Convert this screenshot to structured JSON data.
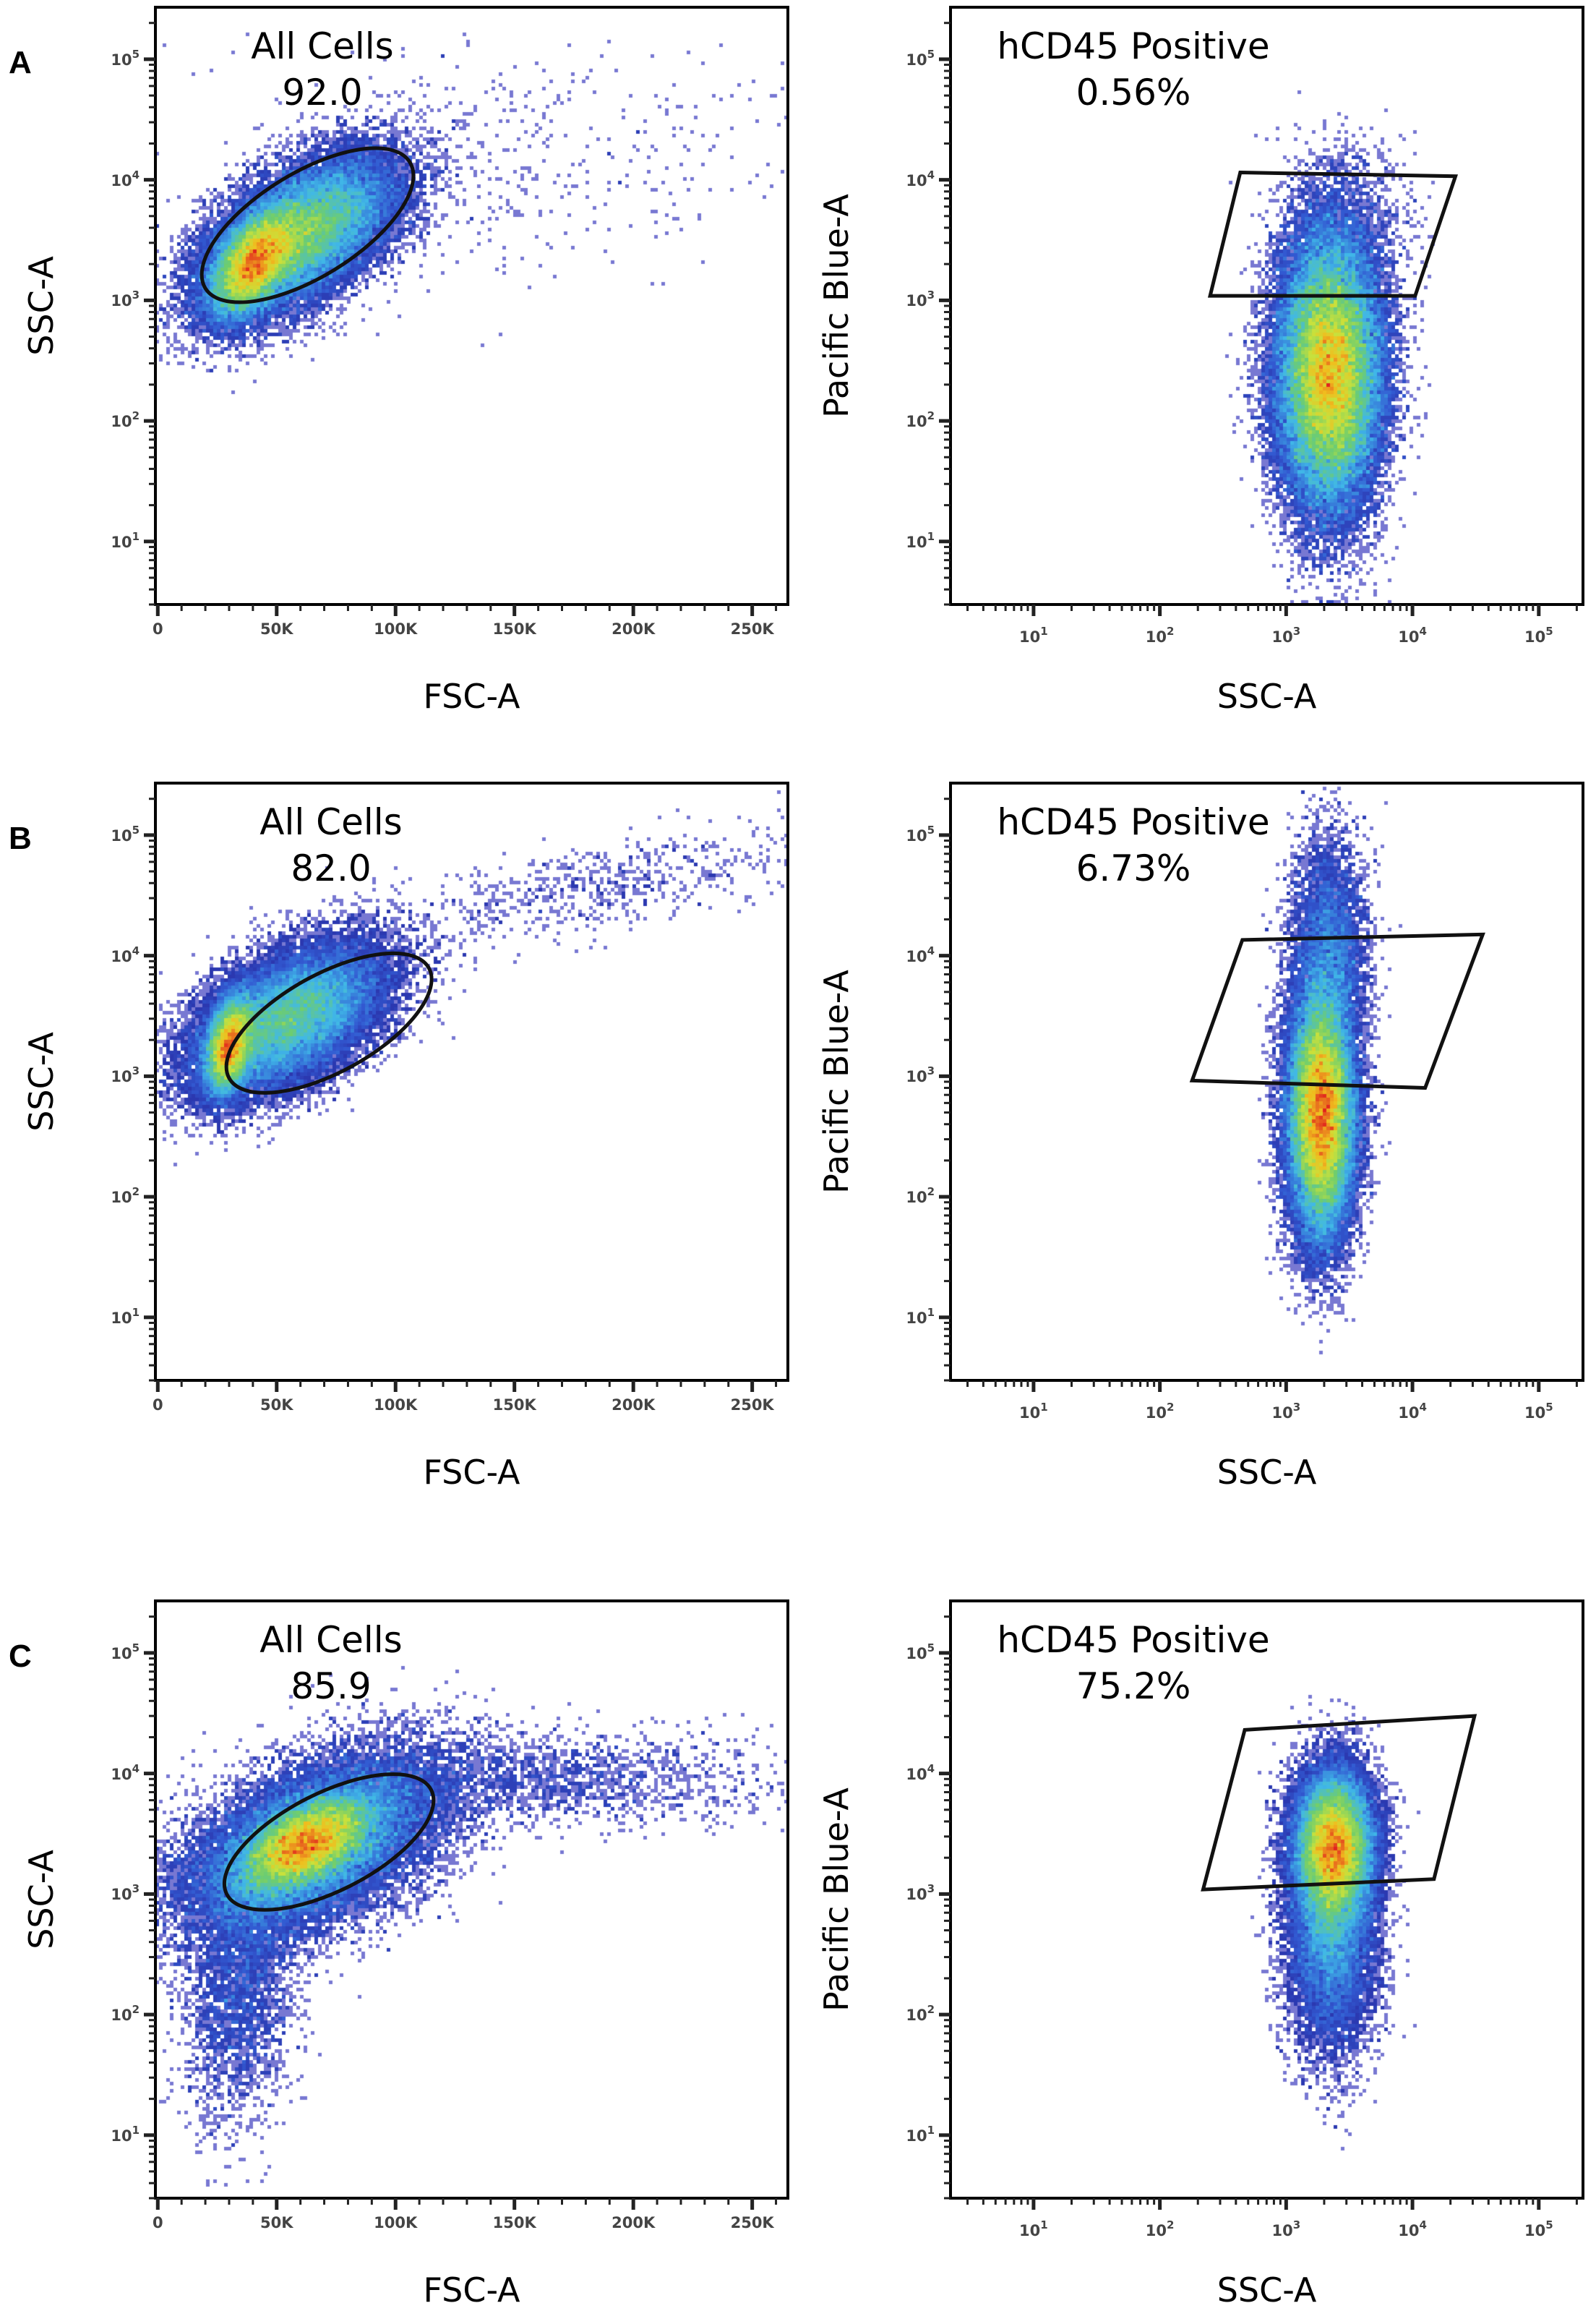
{
  "chart_data": [
    {
      "panel": "A",
      "type": "scatter",
      "subtype": "density-dot-plot",
      "xlabel": "FSC-A",
      "ylabel": "SSC-A",
      "x_scale": "linear",
      "y_scale": "log",
      "xlim": [
        -1000,
        265000
      ],
      "ylim": [
        3,
        270000
      ],
      "x_ticks": [
        "0",
        "50K",
        "100K",
        "150K",
        "200K",
        "250K"
      ],
      "y_ticks": [
        {
          "base": "10",
          "exp": "1"
        },
        {
          "base": "10",
          "exp": "2"
        },
        {
          "base": "10",
          "exp": "3"
        },
        {
          "base": "10",
          "exp": "4"
        },
        {
          "base": "10",
          "exp": "5"
        }
      ],
      "gate": {
        "name": "All Cells",
        "value": "92.0",
        "shape": "ellipse",
        "center": [
          63000,
          4200
        ],
        "major_end": [
          106000,
          14000
        ],
        "minor_end": [
          75000,
          1830
        ]
      },
      "clusters": [
        {
          "x_center": 40000,
          "x_spread": 9000,
          "y_center": 2000,
          "y_spread_decades": 0.22,
          "correlation": 0.5,
          "weight": 0.35
        },
        {
          "x_center": 60000,
          "x_spread": 20000,
          "y_center": 3500,
          "y_spread_decades": 0.32,
          "correlation": 0.55,
          "weight": 0.6
        },
        {
          "x_center": 150000,
          "x_spread": 60000,
          "y_center": 15000,
          "y_spread_decades": 0.5,
          "correlation": 0.2,
          "weight": 0.01
        }
      ]
    },
    {
      "panel": "A",
      "type": "scatter",
      "subtype": "density-dot-plot",
      "xlabel": "SSC-A",
      "ylabel": "Pacific Blue-A",
      "x_scale": "log",
      "y_scale": "log",
      "xlim": [
        2.2,
        224000
      ],
      "ylim": [
        3,
        270000
      ],
      "x_ticks": [
        {
          "base": "10",
          "exp": "1"
        },
        {
          "base": "10",
          "exp": "2"
        },
        {
          "base": "10",
          "exp": "3"
        },
        {
          "base": "10",
          "exp": "4"
        },
        {
          "base": "10",
          "exp": "5"
        }
      ],
      "y_ticks": [
        {
          "base": "10",
          "exp": "1"
        },
        {
          "base": "10",
          "exp": "2"
        },
        {
          "base": "10",
          "exp": "3"
        },
        {
          "base": "10",
          "exp": "4"
        },
        {
          "base": "10",
          "exp": "5"
        }
      ],
      "gate": {
        "name": "hCD45 Positive",
        "value": "0.56%",
        "shape": "polygon",
        "vertices": [
          [
            433,
            11500
          ],
          [
            21900,
            10700
          ],
          [
            10500,
            1090
          ],
          [
            250,
            1090
          ]
        ]
      },
      "clusters": [
        {
          "x_center": 2200,
          "x_spread_decades": 0.2,
          "y_center": 250,
          "y_spread_decades": 0.55,
          "correlation": 0.0,
          "weight": 0.97
        },
        {
          "x_center": 3000,
          "x_spread_decades": 0.25,
          "y_center": 3000,
          "y_spread_decades": 0.4,
          "correlation": 0.0,
          "weight": 0.03
        }
      ]
    },
    {
      "panel": "B",
      "type": "scatter",
      "subtype": "density-dot-plot",
      "xlabel": "FSC-A",
      "ylabel": "SSC-A",
      "x_scale": "linear",
      "y_scale": "log",
      "xlim": [
        -1000,
        265000
      ],
      "ylim": [
        3,
        270000
      ],
      "x_ticks": [
        "0",
        "50K",
        "100K",
        "150K",
        "200K",
        "250K"
      ],
      "y_ticks": [
        {
          "base": "10",
          "exp": "1"
        },
        {
          "base": "10",
          "exp": "2"
        },
        {
          "base": "10",
          "exp": "3"
        },
        {
          "base": "10",
          "exp": "4"
        },
        {
          "base": "10",
          "exp": "5"
        }
      ],
      "gate": {
        "name": "All Cells",
        "value": "82.0",
        "shape": "ellipse",
        "center": [
          72000,
          2760
        ],
        "major_end": [
          114000,
          7900
        ],
        "minor_end": [
          82000,
          1220
        ]
      },
      "clusters": [
        {
          "x_center": 30000,
          "x_spread": 5000,
          "y_center": 1800,
          "y_spread_decades": 0.2,
          "correlation": 0.3,
          "weight": 0.3
        },
        {
          "x_center": 55000,
          "x_spread": 20000,
          "y_center": 3000,
          "y_spread_decades": 0.3,
          "correlation": 0.5,
          "weight": 0.62
        },
        {
          "x_center": 180000,
          "x_spread": 50000,
          "y_center": 35000,
          "y_spread_decades": 0.25,
          "correlation": 0.7,
          "weight": 0.015
        }
      ]
    },
    {
      "panel": "B",
      "type": "scatter",
      "subtype": "density-dot-plot",
      "xlabel": "SSC-A",
      "ylabel": "Pacific Blue-A",
      "x_scale": "log",
      "y_scale": "log",
      "xlim": [
        2.2,
        224000
      ],
      "ylim": [
        3,
        270000
      ],
      "x_ticks": [
        {
          "base": "10",
          "exp": "1"
        },
        {
          "base": "10",
          "exp": "2"
        },
        {
          "base": "10",
          "exp": "3"
        },
        {
          "base": "10",
          "exp": "4"
        },
        {
          "base": "10",
          "exp": "5"
        }
      ],
      "y_ticks": [
        {
          "base": "10",
          "exp": "1"
        },
        {
          "base": "10",
          "exp": "2"
        },
        {
          "base": "10",
          "exp": "3"
        },
        {
          "base": "10",
          "exp": "4"
        },
        {
          "base": "10",
          "exp": "5"
        }
      ],
      "gate": {
        "name": "hCD45 Positive",
        "value": "6.73%",
        "shape": "polygon",
        "vertices": [
          [
            450,
            13500
          ],
          [
            36000,
            15000
          ],
          [
            12600,
            800
          ],
          [
            180,
            920
          ]
        ]
      },
      "clusters": [
        {
          "x_center": 1900,
          "x_spread_decades": 0.13,
          "y_center": 500,
          "y_spread_decades": 0.5,
          "correlation": 0.0,
          "weight": 0.9
        },
        {
          "x_center": 2200,
          "x_spread_decades": 0.15,
          "y_center": 12000,
          "y_spread_decades": 0.45,
          "correlation": 0.0,
          "weight": 0.1
        }
      ]
    },
    {
      "panel": "C",
      "type": "scatter",
      "subtype": "density-dot-plot",
      "xlabel": "FSC-A",
      "ylabel": "SSC-A",
      "x_scale": "linear",
      "y_scale": "log",
      "xlim": [
        -1000,
        265000
      ],
      "ylim": [
        3,
        270000
      ],
      "x_ticks": [
        "0",
        "50K",
        "100K",
        "150K",
        "200K",
        "250K"
      ],
      "y_ticks": [
        {
          "base": "10",
          "exp": "1"
        },
        {
          "base": "10",
          "exp": "2"
        },
        {
          "base": "10",
          "exp": "3"
        },
        {
          "base": "10",
          "exp": "4"
        },
        {
          "base": "10",
          "exp": "5"
        }
      ],
      "gate": {
        "name": "All Cells",
        "value": "85.9",
        "shape": "ellipse",
        "center": [
          72000,
          2700
        ],
        "major_end": [
          115000,
          7300
        ],
        "minor_end": [
          81000,
          1170
        ]
      },
      "clusters": [
        {
          "x_center": 62000,
          "x_spread": 14000,
          "y_center": 2600,
          "y_spread_decades": 0.2,
          "correlation": 0.5,
          "weight": 0.45
        },
        {
          "x_center": 65000,
          "x_spread": 28000,
          "y_center": 2500,
          "y_spread_decades": 0.38,
          "correlation": 0.5,
          "weight": 0.45
        },
        {
          "x_center": 35000,
          "x_spread": 12000,
          "y_center": 150,
          "y_spread_decades": 0.5,
          "correlation": 0.2,
          "weight": 0.06
        },
        {
          "x_center": 160000,
          "x_spread": 50000,
          "y_center": 9000,
          "y_spread_decades": 0.2,
          "correlation": 0.0,
          "weight": 0.04
        }
      ]
    },
    {
      "panel": "C",
      "type": "scatter",
      "subtype": "density-dot-plot",
      "xlabel": "SSC-A",
      "ylabel": "Pacific Blue-A",
      "x_scale": "log",
      "y_scale": "log",
      "xlim": [
        2.2,
        224000
      ],
      "ylim": [
        3,
        270000
      ],
      "x_ticks": [
        {
          "base": "10",
          "exp": "1"
        },
        {
          "base": "10",
          "exp": "2"
        },
        {
          "base": "10",
          "exp": "3"
        },
        {
          "base": "10",
          "exp": "4"
        },
        {
          "base": "10",
          "exp": "5"
        }
      ],
      "y_ticks": [
        {
          "base": "10",
          "exp": "1"
        },
        {
          "base": "10",
          "exp": "2"
        },
        {
          "base": "10",
          "exp": "3"
        },
        {
          "base": "10",
          "exp": "4"
        },
        {
          "base": "10",
          "exp": "5"
        }
      ],
      "gate": {
        "name": "hCD45 Positive",
        "value": "75.2%",
        "shape": "polygon",
        "vertices": [
          [
            470,
            23000
          ],
          [
            31000,
            30000
          ],
          [
            14800,
            1330
          ],
          [
            220,
            1090
          ]
        ]
      },
      "clusters": [
        {
          "x_center": 2400,
          "x_spread_decades": 0.15,
          "y_center": 2500,
          "y_spread_decades": 0.3,
          "correlation": 0.0,
          "weight": 0.7
        },
        {
          "x_center": 2300,
          "x_spread_decades": 0.17,
          "y_center": 600,
          "y_spread_decades": 0.5,
          "correlation": 0.0,
          "weight": 0.3
        }
      ]
    }
  ],
  "panel_letters": [
    "A",
    "B",
    "C"
  ],
  "colors": {
    "frame": "#000000",
    "gate": "#111111",
    "density_low": "#2a2aa0",
    "density_mid": "#40b8e8",
    "density_high": "#e02020"
  }
}
